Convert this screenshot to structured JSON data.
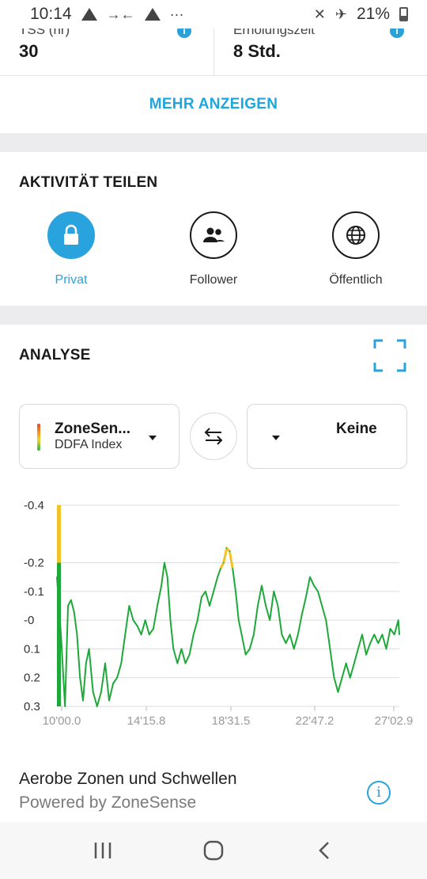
{
  "status_bar": {
    "time": "10:14",
    "battery": "21%",
    "dots": "···"
  },
  "stats": [
    {
      "label": "TSS (hr)",
      "value": "30"
    },
    {
      "label": "Erholungszeit",
      "value": "8 Std."
    }
  ],
  "more_button": "MEHR ANZEIGEN",
  "share": {
    "title": "AKTIVITÄT TEILEN",
    "options": [
      {
        "label": "Privat",
        "icon": "lock-icon",
        "active": true
      },
      {
        "label": "Follower",
        "icon": "people-icon",
        "active": false
      },
      {
        "label": "Öffentlich",
        "icon": "globe-icon",
        "active": false
      }
    ]
  },
  "analysis": {
    "title": "ANALYSE",
    "left_picker": {
      "main": "ZoneSen...",
      "sub": "DDFA Index"
    },
    "right_picker": {
      "main": "Keine"
    }
  },
  "colors": {
    "accent": "#29a3dd",
    "line": "#1fa83a",
    "highlight": "#f5c128",
    "text": "#1a1a1a"
  },
  "chart_data": {
    "type": "line",
    "title": "",
    "xlabel": "",
    "ylabel": "",
    "x_ticks": [
      "10'00.0",
      "14'15.8",
      "18'31.5",
      "22'47.2",
      "27'02.9"
    ],
    "y_ticks": [
      "-0.4",
      "-0.2",
      "-0.1",
      "-0",
      "0.1",
      "0.2",
      "0.3"
    ],
    "x_range_min": [
      10.0,
      27.05
    ],
    "highlight_threshold": -0.18,
    "series": [
      {
        "values": [
          [
            10.0,
            -0.15
          ],
          [
            10.2,
            0.05
          ],
          [
            10.4,
            0.3
          ],
          [
            10.55,
            -0.05
          ],
          [
            10.7,
            -0.07
          ],
          [
            10.85,
            -0.03
          ],
          [
            11.0,
            0.05
          ],
          [
            11.15,
            0.2
          ],
          [
            11.3,
            0.28
          ],
          [
            11.45,
            0.15
          ],
          [
            11.6,
            0.1
          ],
          [
            11.8,
            0.25
          ],
          [
            12.0,
            0.3
          ],
          [
            12.2,
            0.25
          ],
          [
            12.4,
            0.15
          ],
          [
            12.6,
            0.28
          ],
          [
            12.8,
            0.22
          ],
          [
            13.0,
            0.2
          ],
          [
            13.2,
            0.15
          ],
          [
            13.4,
            0.05
          ],
          [
            13.6,
            -0.05
          ],
          [
            13.8,
            0.0
          ],
          [
            14.0,
            0.02
          ],
          [
            14.2,
            0.05
          ],
          [
            14.4,
            0.0
          ],
          [
            14.6,
            0.05
          ],
          [
            14.8,
            0.03
          ],
          [
            15.0,
            -0.05
          ],
          [
            15.2,
            -0.12
          ],
          [
            15.35,
            -0.2
          ],
          [
            15.5,
            -0.15
          ],
          [
            15.65,
            0.0
          ],
          [
            15.8,
            0.1
          ],
          [
            16.0,
            0.15
          ],
          [
            16.2,
            0.1
          ],
          [
            16.4,
            0.15
          ],
          [
            16.6,
            0.12
          ],
          [
            16.8,
            0.05
          ],
          [
            17.0,
            0.0
          ],
          [
            17.2,
            -0.08
          ],
          [
            17.4,
            -0.1
          ],
          [
            17.6,
            -0.05
          ],
          [
            17.8,
            -0.1
          ],
          [
            18.0,
            -0.15
          ],
          [
            18.15,
            -0.18
          ],
          [
            18.3,
            -0.2
          ],
          [
            18.45,
            -0.25
          ],
          [
            18.6,
            -0.24
          ],
          [
            18.75,
            -0.18
          ],
          [
            18.9,
            -0.1
          ],
          [
            19.05,
            0.0
          ],
          [
            19.2,
            0.05
          ],
          [
            19.4,
            0.12
          ],
          [
            19.6,
            0.1
          ],
          [
            19.8,
            0.05
          ],
          [
            20.0,
            -0.05
          ],
          [
            20.2,
            -0.12
          ],
          [
            20.4,
            -0.05
          ],
          [
            20.6,
            0.0
          ],
          [
            20.8,
            -0.1
          ],
          [
            21.0,
            -0.05
          ],
          [
            21.2,
            0.05
          ],
          [
            21.4,
            0.08
          ],
          [
            21.6,
            0.05
          ],
          [
            21.8,
            0.1
          ],
          [
            22.0,
            0.05
          ],
          [
            22.2,
            -0.02
          ],
          [
            22.4,
            -0.08
          ],
          [
            22.6,
            -0.15
          ],
          [
            22.8,
            -0.12
          ],
          [
            23.0,
            -0.1
          ],
          [
            23.2,
            -0.05
          ],
          [
            23.4,
            0.0
          ],
          [
            23.6,
            0.1
          ],
          [
            23.8,
            0.2
          ],
          [
            24.0,
            0.25
          ],
          [
            24.2,
            0.2
          ],
          [
            24.4,
            0.15
          ],
          [
            24.6,
            0.2
          ],
          [
            24.8,
            0.15
          ],
          [
            25.0,
            0.1
          ],
          [
            25.2,
            0.05
          ],
          [
            25.4,
            0.12
          ],
          [
            25.6,
            0.08
          ],
          [
            25.8,
            0.05
          ],
          [
            26.0,
            0.08
          ],
          [
            26.2,
            0.05
          ],
          [
            26.4,
            0.1
          ],
          [
            26.6,
            0.03
          ],
          [
            26.8,
            0.05
          ],
          [
            27.0,
            0.0
          ],
          [
            27.05,
            0.05
          ]
        ]
      }
    ]
  },
  "zones": {
    "title": "Aerobe Zonen und Schwellen",
    "subtitle": "Powered by ZoneSense"
  }
}
